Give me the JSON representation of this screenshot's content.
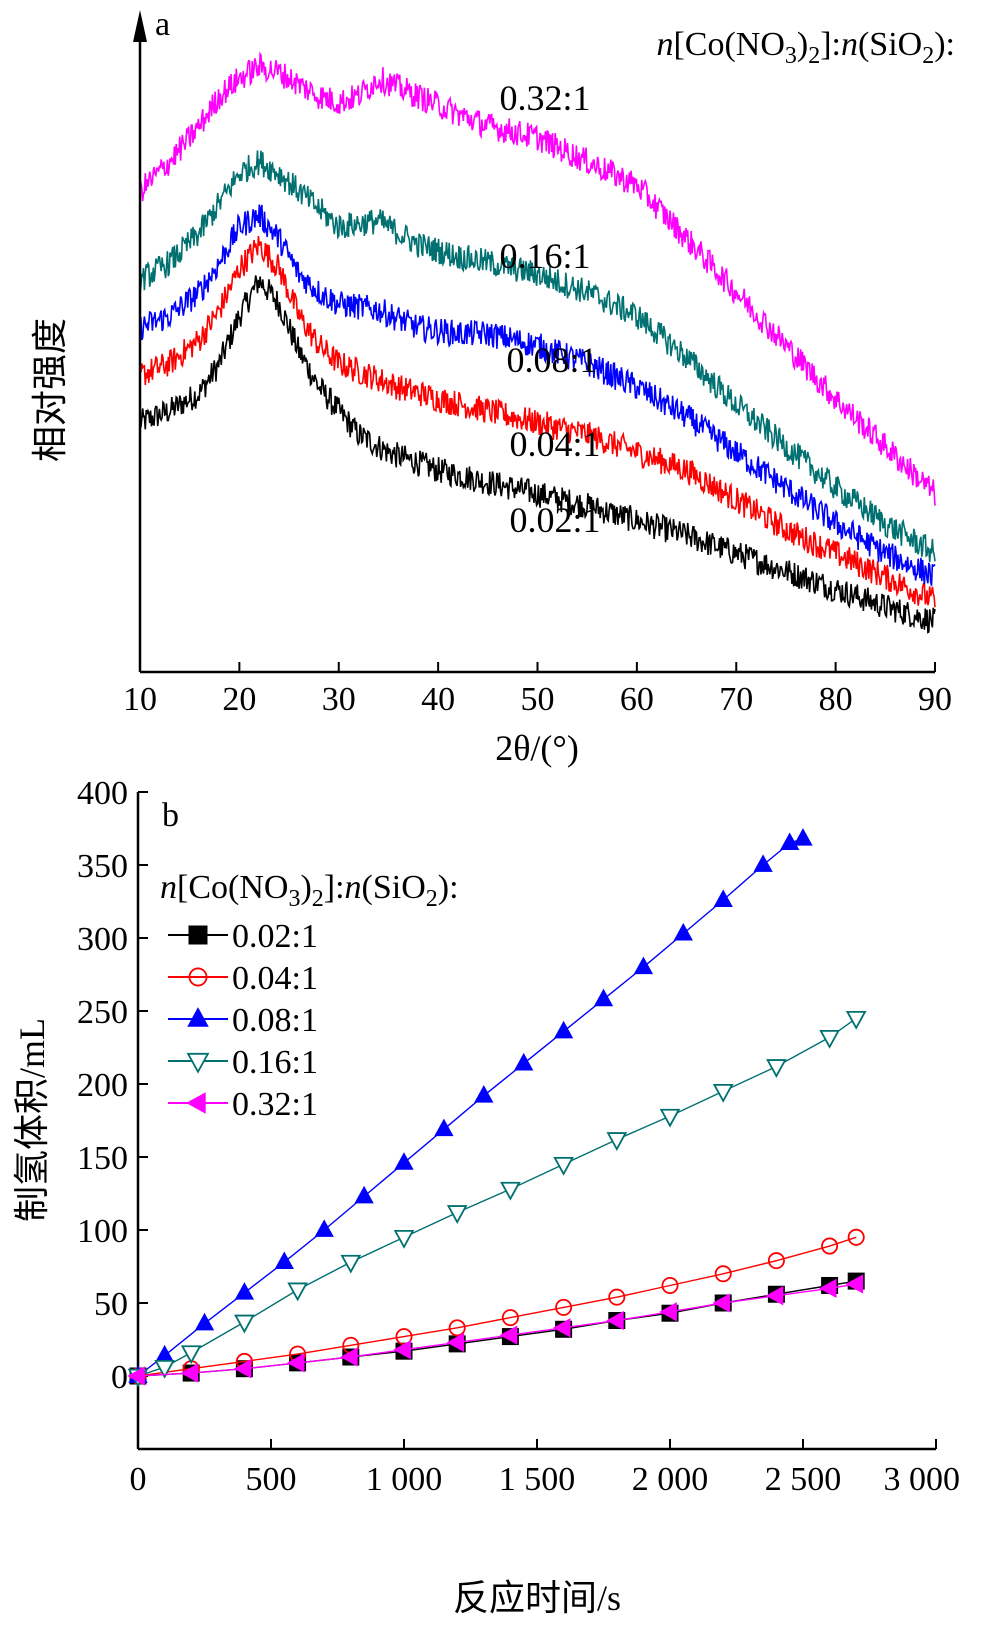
{
  "chart_data": [
    {
      "panel": "a",
      "type": "line",
      "xlabel": "2θ/(°)",
      "ylabel": "相对强度",
      "xlim": [
        10,
        90
      ],
      "xticks": [
        "10",
        "20",
        "30",
        "40",
        "50",
        "60",
        "70",
        "80",
        "90"
      ],
      "y_ticks_shown": false,
      "legend_title_parts": [
        "n",
        "[Co(NO",
        "3",
        ")",
        "2",
        "]:",
        "n",
        "(SiO",
        "2",
        "):"
      ],
      "series": [
        {
          "name": "0.02:1",
          "color": "#000000",
          "x": [
            10,
            13,
            16,
            18,
            20,
            22,
            24,
            26,
            28,
            30,
            32,
            35,
            40,
            45,
            50,
            55,
            60,
            65,
            70,
            75,
            80,
            85,
            90
          ],
          "y": [
            0.42,
            0.44,
            0.47,
            0.52,
            0.6,
            0.66,
            0.62,
            0.54,
            0.48,
            0.44,
            0.4,
            0.37,
            0.34,
            0.32,
            0.3,
            0.28,
            0.255,
            0.23,
            0.2,
            0.17,
            0.14,
            0.11,
            0.085
          ]
        },
        {
          "name": "0.04:1",
          "color": "#ff0000",
          "x": [
            10,
            13,
            16,
            18,
            20,
            22,
            24,
            26,
            28,
            30,
            33,
            36,
            40,
            45,
            50,
            55,
            60,
            65,
            70,
            75,
            80,
            85,
            90
          ],
          "y": [
            0.5,
            0.52,
            0.56,
            0.61,
            0.68,
            0.72,
            0.68,
            0.6,
            0.55,
            0.52,
            0.5,
            0.48,
            0.46,
            0.44,
            0.42,
            0.4,
            0.37,
            0.34,
            0.29,
            0.24,
            0.2,
            0.16,
            0.12
          ]
        },
        {
          "name": "0.08:1",
          "color": "#0000ff",
          "x": [
            10,
            13,
            16,
            18,
            20,
            22,
            24,
            26,
            28,
            30,
            34,
            38,
            42,
            45,
            50,
            55,
            60,
            65,
            70,
            75,
            80,
            85,
            90
          ],
          "y": [
            0.58,
            0.6,
            0.64,
            0.69,
            0.75,
            0.77,
            0.73,
            0.67,
            0.64,
            0.62,
            0.61,
            0.58,
            0.57,
            0.57,
            0.55,
            0.52,
            0.48,
            0.43,
            0.37,
            0.31,
            0.25,
            0.2,
            0.16
          ]
        },
        {
          "name": "0.16:1",
          "color": "#007070",
          "x": [
            10,
            13,
            16,
            18,
            20,
            22,
            24,
            26,
            28,
            30,
            34,
            38,
            42,
            45,
            50,
            55,
            60,
            65,
            70,
            75,
            80,
            85,
            90
          ],
          "y": [
            0.66,
            0.69,
            0.74,
            0.79,
            0.84,
            0.86,
            0.84,
            0.81,
            0.78,
            0.75,
            0.76,
            0.72,
            0.7,
            0.69,
            0.67,
            0.64,
            0.6,
            0.53,
            0.45,
            0.38,
            0.31,
            0.25,
            0.2
          ]
        },
        {
          "name": "0.32:1",
          "color": "#ff00ff",
          "x": [
            10,
            13,
            16,
            18,
            20,
            22,
            24,
            26,
            28,
            30,
            32,
            34,
            38,
            42,
            45,
            50,
            55,
            60,
            65,
            70,
            75,
            80,
            85,
            90
          ],
          "y": [
            0.81,
            0.86,
            0.92,
            0.97,
            1.0,
            1.02,
            1.01,
            0.99,
            0.97,
            0.96,
            0.97,
            1.0,
            0.97,
            0.94,
            0.92,
            0.9,
            0.86,
            0.82,
            0.73,
            0.64,
            0.55,
            0.46,
            0.38,
            0.3
          ]
        }
      ],
      "curve_labels": [
        "0.32:1",
        "0.16:1",
        "0.08:1",
        "0.04:1",
        "0.02:1"
      ]
    },
    {
      "panel": "b",
      "type": "scatter",
      "xlabel": "反应时间/s",
      "ylabel": "制氢体积/mL",
      "xlim": [
        0,
        3000
      ],
      "ylim": [
        -50,
        400
      ],
      "xticks": [
        0,
        500,
        1000,
        1500,
        2000,
        2500,
        3000
      ],
      "xtick_labels": [
        "0",
        "500",
        "1 000",
        "1 500",
        "2 000",
        "2 500",
        "3 000"
      ],
      "yticks": [
        0,
        50,
        100,
        150,
        200,
        250,
        300,
        350,
        400
      ],
      "ytick_labels": [
        "0",
        "50",
        "100",
        "150",
        "200",
        "250",
        "300",
        "350",
        "400"
      ],
      "legend_title_parts": [
        "n",
        "[Co(NO",
        "3",
        ")",
        "2",
        "]:",
        "n",
        "(SiO",
        "2",
        "):"
      ],
      "series": [
        {
          "name": "0.02:1",
          "color": "#000000",
          "marker": "square-filled",
          "x": [
            0,
            200,
            400,
            600,
            800,
            1000,
            1200,
            1400,
            1600,
            1800,
            2000,
            2200,
            2400,
            2600,
            2700
          ],
          "y": [
            0,
            2,
            5,
            9,
            13,
            17,
            22,
            27,
            32,
            38,
            43,
            50,
            56,
            62,
            65
          ]
        },
        {
          "name": "0.04:1",
          "color": "#ff0000",
          "marker": "circle-open",
          "x": [
            0,
            200,
            400,
            600,
            800,
            1000,
            1200,
            1400,
            1600,
            1800,
            2000,
            2200,
            2400,
            2600,
            2700
          ],
          "y": [
            0,
            5,
            10,
            15,
            21,
            27,
            33,
            40,
            47,
            54,
            62,
            70,
            79,
            89,
            95
          ]
        },
        {
          "name": "0.08:1",
          "color": "#0000ff",
          "marker": "triangle-up-filled",
          "x": [
            0,
            100,
            250,
            400,
            550,
            700,
            850,
            1000,
            1150,
            1300,
            1450,
            1600,
            1750,
            1900,
            2050,
            2200,
            2350,
            2450,
            2500
          ],
          "y": [
            0,
            14,
            36,
            57,
            78,
            100,
            123,
            146,
            169,
            192,
            214,
            236,
            258,
            280,
            303,
            326,
            350,
            365,
            368
          ]
        },
        {
          "name": "0.16:1",
          "color": "#007070",
          "marker": "triangle-down-open",
          "x": [
            0,
            100,
            200,
            400,
            600,
            800,
            1000,
            1200,
            1400,
            1600,
            1800,
            2000,
            2200,
            2400,
            2600,
            2700
          ],
          "y": [
            0,
            6,
            16,
            37,
            59,
            78,
            95,
            112,
            128,
            145,
            162,
            178,
            195,
            212,
            232,
            245
          ]
        },
        {
          "name": "0.32:1",
          "color": "#ff00ff",
          "marker": "triangle-left-filled",
          "x": [
            0,
            200,
            400,
            600,
            800,
            1000,
            1200,
            1400,
            1600,
            1800,
            2000,
            2200,
            2400,
            2600,
            2700
          ],
          "y": [
            0,
            2,
            5,
            9,
            13,
            18,
            23,
            28,
            33,
            38,
            44,
            50,
            55,
            60,
            63
          ]
        }
      ]
    }
  ]
}
